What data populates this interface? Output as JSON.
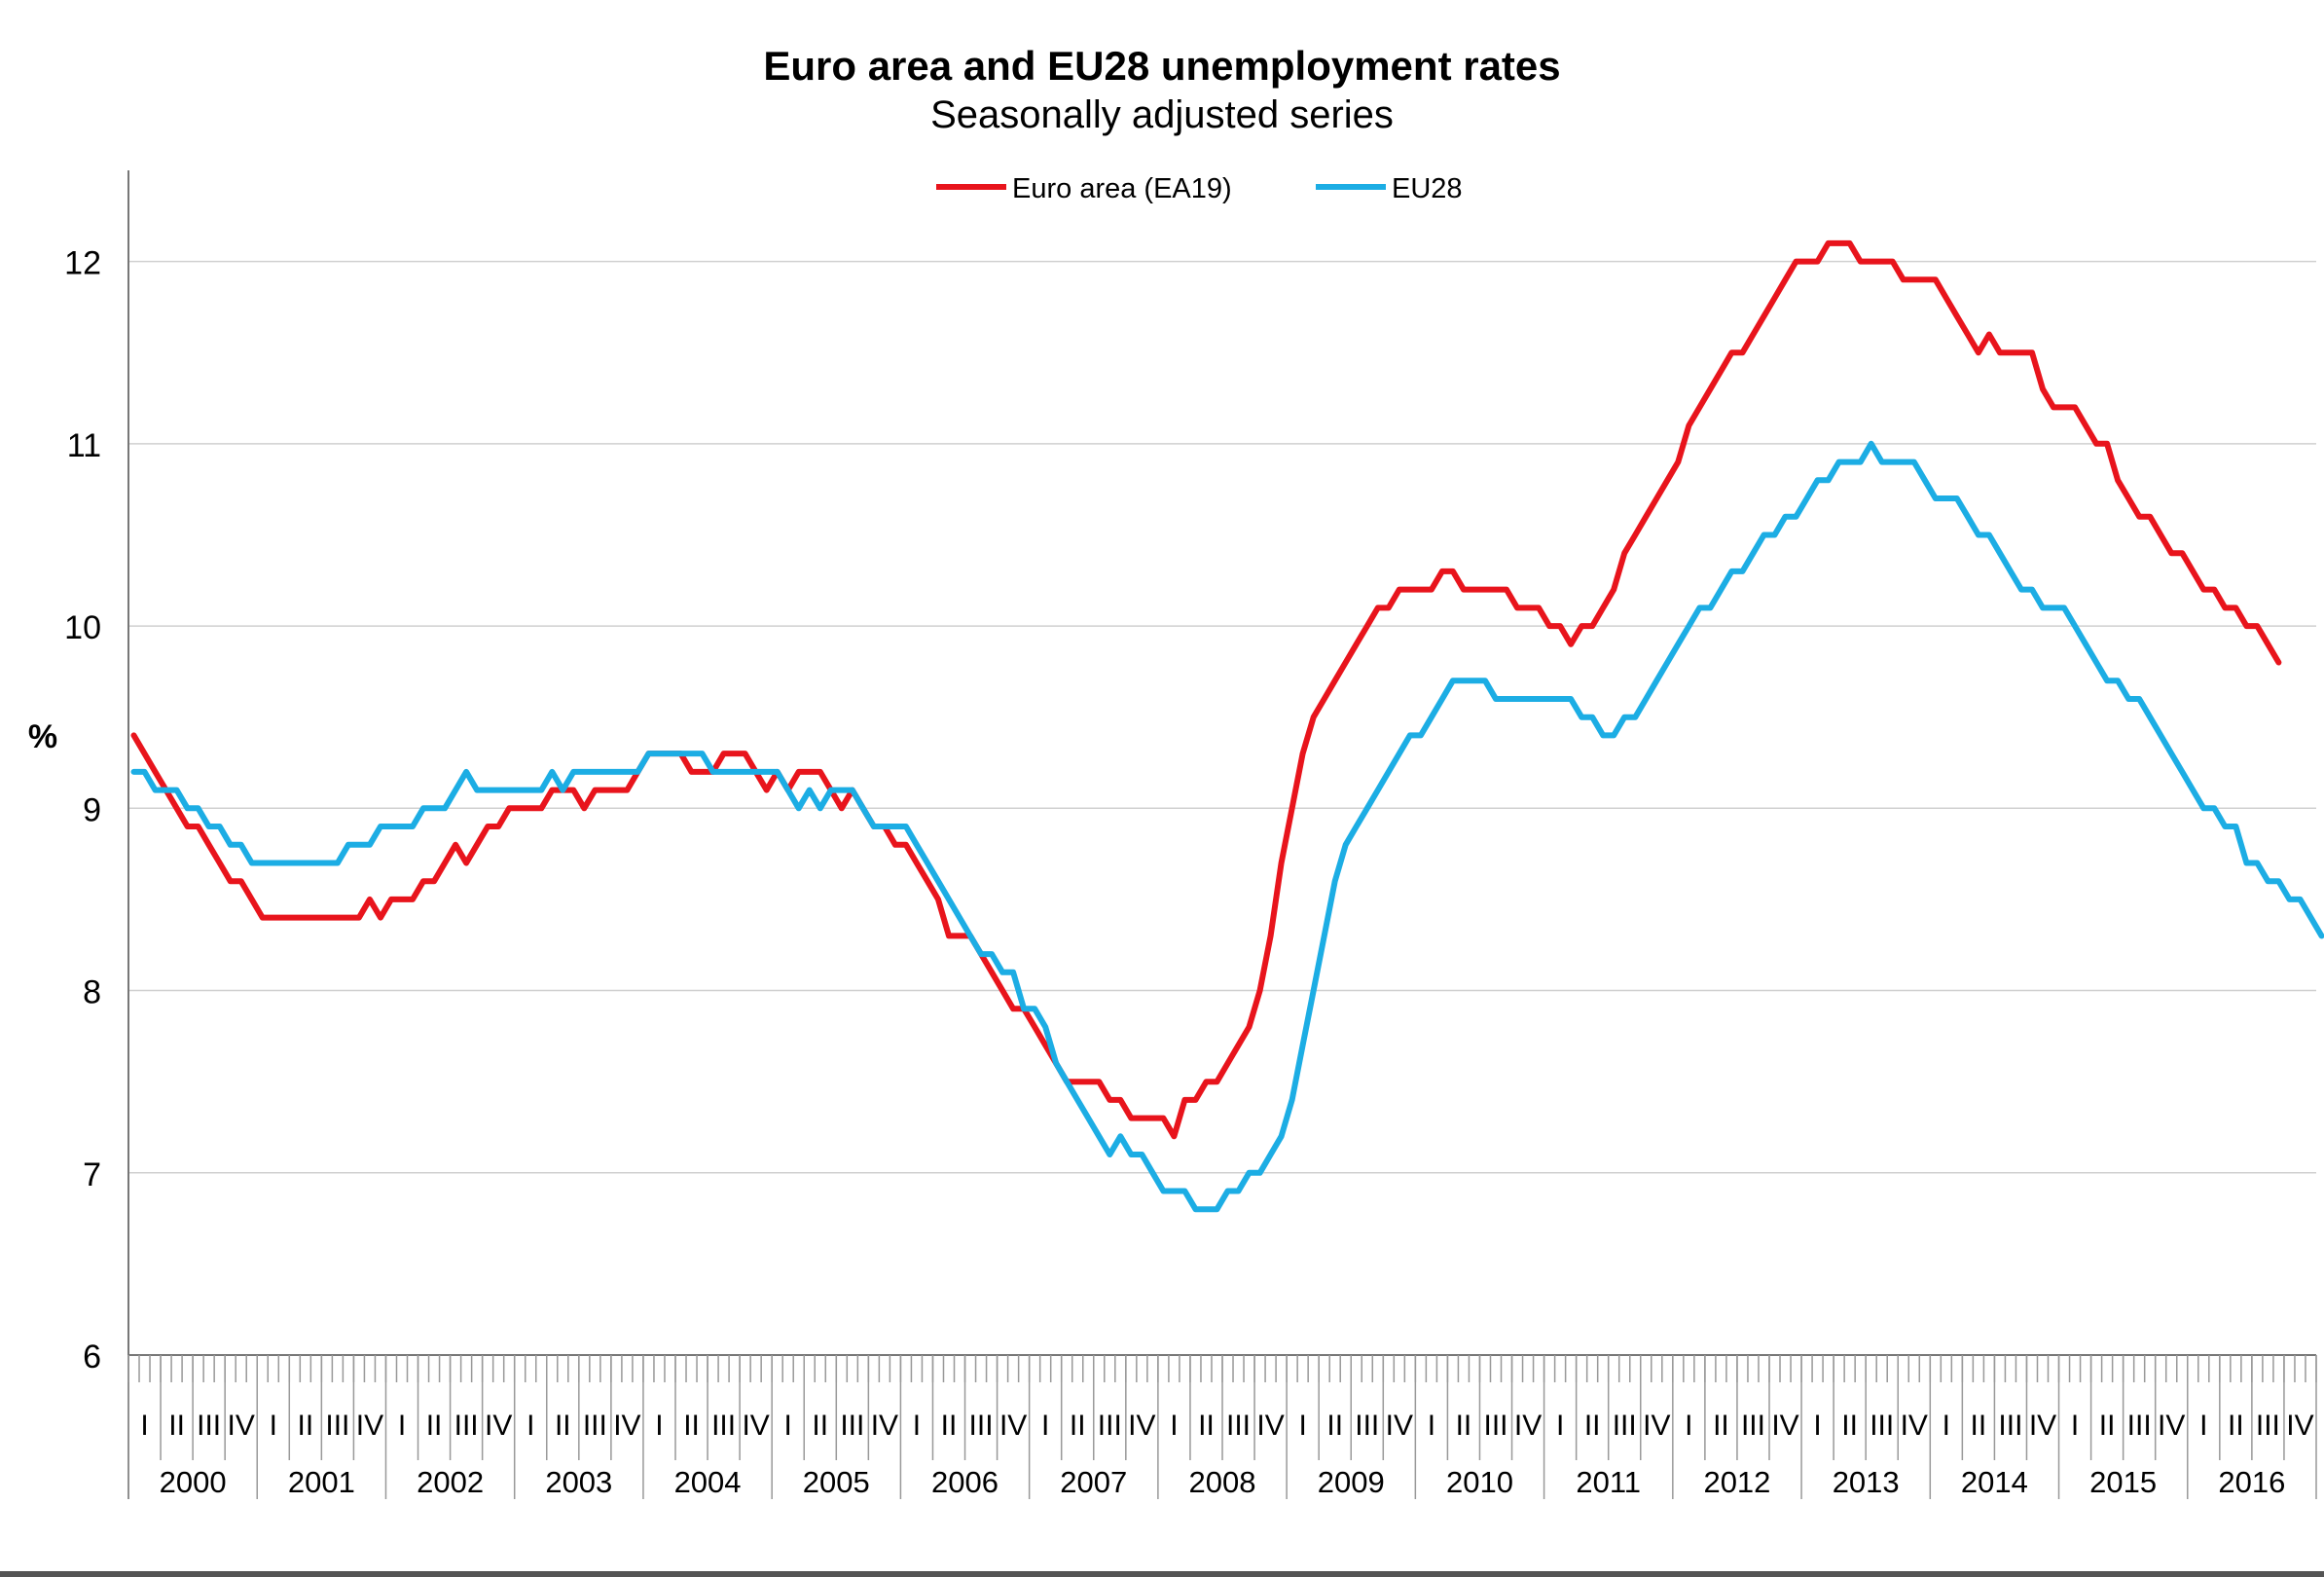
{
  "chart_data": {
    "type": "line",
    "title": "Euro area and EU28 unemployment rates",
    "subtitle": "Seasonally adjusted series",
    "ylabel": "%",
    "ylim": [
      6,
      12.5
    ],
    "yticks": [
      6,
      7,
      8,
      9,
      10,
      11,
      12
    ],
    "grid": true,
    "legend_position": "top-center",
    "years": [
      "2000",
      "2001",
      "2002",
      "2003",
      "2004",
      "2005",
      "2006",
      "2007",
      "2008",
      "2009",
      "2010",
      "2011",
      "2012",
      "2013",
      "2014",
      "2015",
      "2016"
    ],
    "quarters": [
      "I",
      "II",
      "III",
      "IV"
    ],
    "frequency": "monthly",
    "start": "2000-01",
    "series": [
      {
        "name": "Euro area (EA19)",
        "color": "#e8141c",
        "values": [
          9.4,
          9.3,
          9.2,
          9.1,
          9.0,
          8.9,
          8.9,
          8.8,
          8.7,
          8.6,
          8.6,
          8.5,
          8.4,
          8.4,
          8.4,
          8.4,
          8.4,
          8.4,
          8.4,
          8.4,
          8.4,
          8.4,
          8.5,
          8.4,
          8.5,
          8.5,
          8.5,
          8.6,
          8.6,
          8.7,
          8.8,
          8.7,
          8.8,
          8.9,
          8.9,
          9.0,
          9.0,
          9.0,
          9.0,
          9.1,
          9.1,
          9.1,
          9.0,
          9.1,
          9.1,
          9.1,
          9.1,
          9.2,
          9.3,
          9.3,
          9.3,
          9.3,
          9.2,
          9.2,
          9.2,
          9.3,
          9.3,
          9.3,
          9.2,
          9.1,
          9.2,
          9.1,
          9.2,
          9.2,
          9.2,
          9.1,
          9.0,
          9.1,
          9.0,
          8.9,
          8.9,
          8.8,
          8.8,
          8.7,
          8.6,
          8.5,
          8.3,
          8.3,
          8.3,
          8.2,
          8.1,
          8.0,
          7.9,
          7.9,
          7.8,
          7.7,
          7.6,
          7.5,
          7.5,
          7.5,
          7.5,
          7.4,
          7.4,
          7.3,
          7.3,
          7.3,
          7.3,
          7.2,
          7.4,
          7.4,
          7.5,
          7.5,
          7.6,
          7.7,
          7.8,
          8.0,
          8.3,
          8.7,
          9.0,
          9.3,
          9.5,
          9.6,
          9.7,
          9.8,
          9.9,
          10.0,
          10.1,
          10.1,
          10.2,
          10.2,
          10.2,
          10.2,
          10.3,
          10.3,
          10.2,
          10.2,
          10.2,
          10.2,
          10.2,
          10.1,
          10.1,
          10.1,
          10.0,
          10.0,
          9.9,
          10.0,
          10.0,
          10.1,
          10.2,
          10.4,
          10.5,
          10.6,
          10.7,
          10.8,
          10.9,
          11.1,
          11.2,
          11.3,
          11.4,
          11.5,
          11.5,
          11.6,
          11.7,
          11.8,
          11.9,
          12.0,
          12.0,
          12.0,
          12.1,
          12.1,
          12.1,
          12.0,
          12.0,
          12.0,
          12.0,
          11.9,
          11.9,
          11.9,
          11.9,
          11.8,
          11.7,
          11.6,
          11.5,
          11.6,
          11.5,
          11.5,
          11.5,
          11.5,
          11.3,
          11.2,
          11.2,
          11.2,
          11.1,
          11.0,
          11.0,
          10.8,
          10.7,
          10.6,
          10.6,
          10.5,
          10.4,
          10.4,
          10.3,
          10.2,
          10.2,
          10.1,
          10.1,
          10.0,
          10.0,
          9.9,
          9.8
        ]
      },
      {
        "name": "EU28",
        "color": "#1cade4",
        "values": [
          9.2,
          9.2,
          9.1,
          9.1,
          9.1,
          9.0,
          9.0,
          8.9,
          8.9,
          8.8,
          8.8,
          8.7,
          8.7,
          8.7,
          8.7,
          8.7,
          8.7,
          8.7,
          8.7,
          8.7,
          8.8,
          8.8,
          8.8,
          8.9,
          8.9,
          8.9,
          8.9,
          9.0,
          9.0,
          9.0,
          9.1,
          9.2,
          9.1,
          9.1,
          9.1,
          9.1,
          9.1,
          9.1,
          9.1,
          9.2,
          9.1,
          9.2,
          9.2,
          9.2,
          9.2,
          9.2,
          9.2,
          9.2,
          9.3,
          9.3,
          9.3,
          9.3,
          9.3,
          9.3,
          9.2,
          9.2,
          9.2,
          9.2,
          9.2,
          9.2,
          9.2,
          9.1,
          9.0,
          9.1,
          9.0,
          9.1,
          9.1,
          9.1,
          9.0,
          8.9,
          8.9,
          8.9,
          8.9,
          8.8,
          8.7,
          8.6,
          8.5,
          8.4,
          8.3,
          8.2,
          8.2,
          8.1,
          8.1,
          7.9,
          7.9,
          7.8,
          7.6,
          7.5,
          7.4,
          7.3,
          7.2,
          7.1,
          7.2,
          7.1,
          7.1,
          7.0,
          6.9,
          6.9,
          6.9,
          6.8,
          6.8,
          6.8,
          6.9,
          6.9,
          7.0,
          7.0,
          7.1,
          7.2,
          7.4,
          7.7,
          8.0,
          8.3,
          8.6,
          8.8,
          8.9,
          9.0,
          9.1,
          9.2,
          9.3,
          9.4,
          9.4,
          9.5,
          9.6,
          9.7,
          9.7,
          9.7,
          9.7,
          9.6,
          9.6,
          9.6,
          9.6,
          9.6,
          9.6,
          9.6,
          9.6,
          9.5,
          9.5,
          9.4,
          9.4,
          9.5,
          9.5,
          9.6,
          9.7,
          9.8,
          9.9,
          10.0,
          10.1,
          10.1,
          10.2,
          10.3,
          10.3,
          10.4,
          10.5,
          10.5,
          10.6,
          10.6,
          10.7,
          10.8,
          10.8,
          10.9,
          10.9,
          10.9,
          11.0,
          10.9,
          10.9,
          10.9,
          10.9,
          10.8,
          10.7,
          10.7,
          10.7,
          10.6,
          10.5,
          10.5,
          10.4,
          10.3,
          10.2,
          10.2,
          10.1,
          10.1,
          10.1,
          10.0,
          9.9,
          9.8,
          9.7,
          9.7,
          9.6,
          9.6,
          9.5,
          9.4,
          9.3,
          9.2,
          9.1,
          9.0,
          9.0,
          8.9,
          8.9,
          8.7,
          8.7,
          8.6,
          8.6,
          8.5,
          8.5,
          8.4,
          8.3
        ]
      }
    ]
  }
}
